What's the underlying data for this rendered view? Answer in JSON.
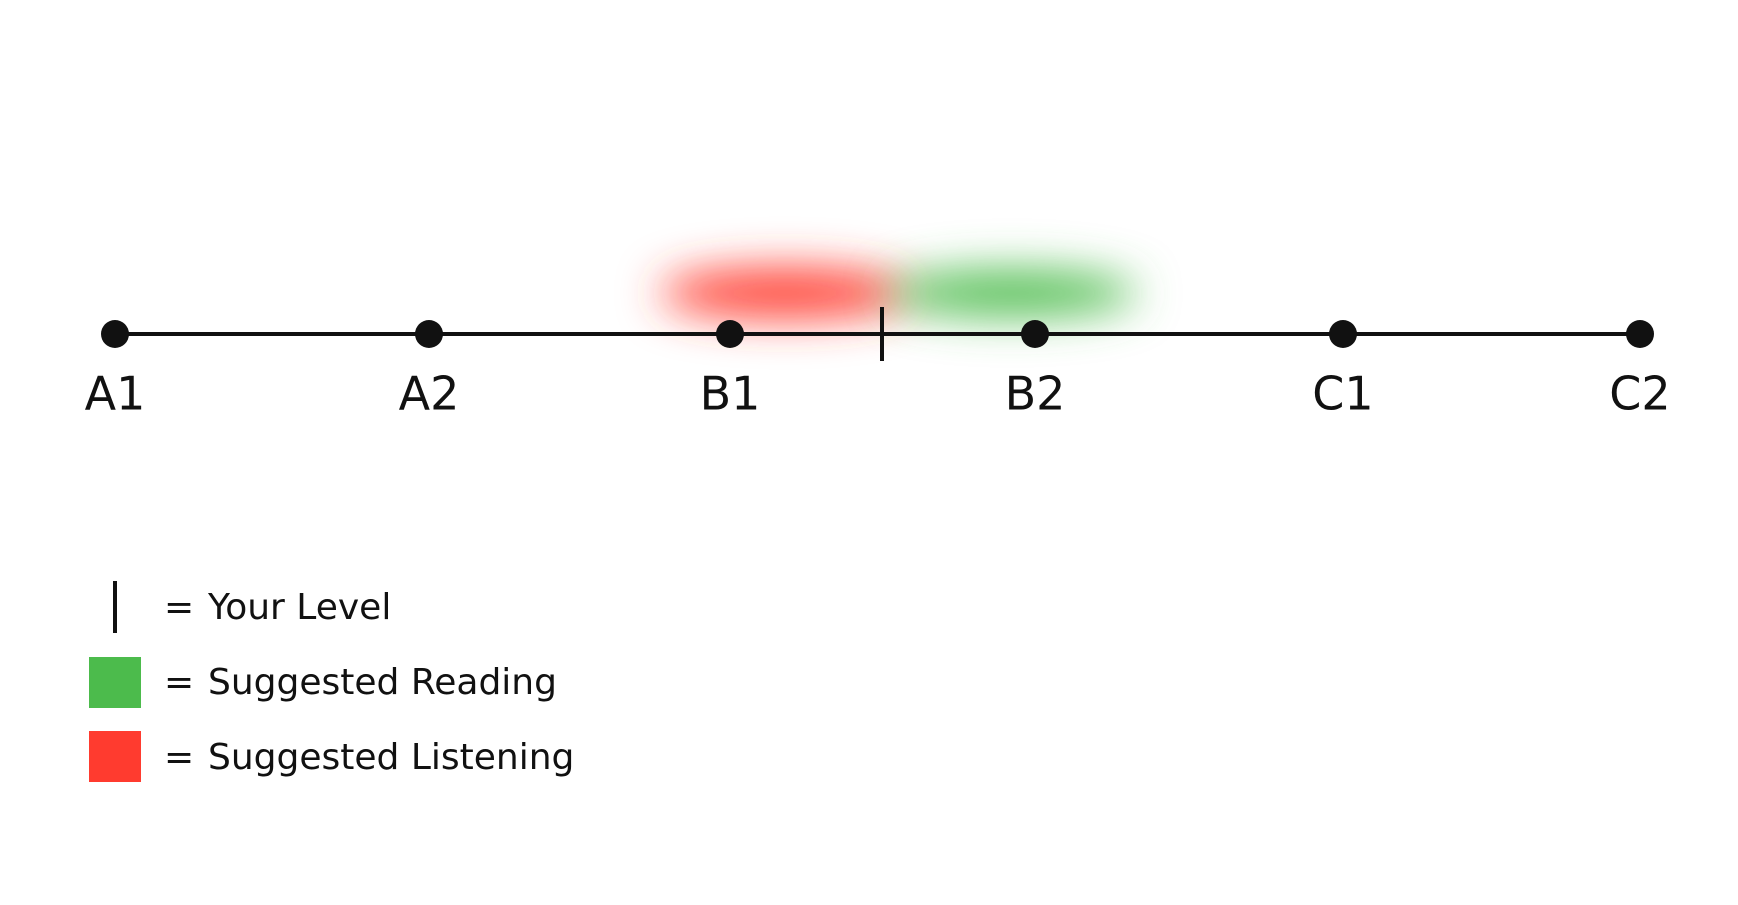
{
  "levels": [
    "A1",
    "A2",
    "B1",
    "B2",
    "C1",
    "C2"
  ],
  "legend": [
    {
      "symbol": "=",
      "label": "Your Level"
    },
    {
      "symbol": "=",
      "label": "Suggested Reading"
    },
    {
      "symbol": "=",
      "label": "Suggested Listening"
    }
  ]
}
